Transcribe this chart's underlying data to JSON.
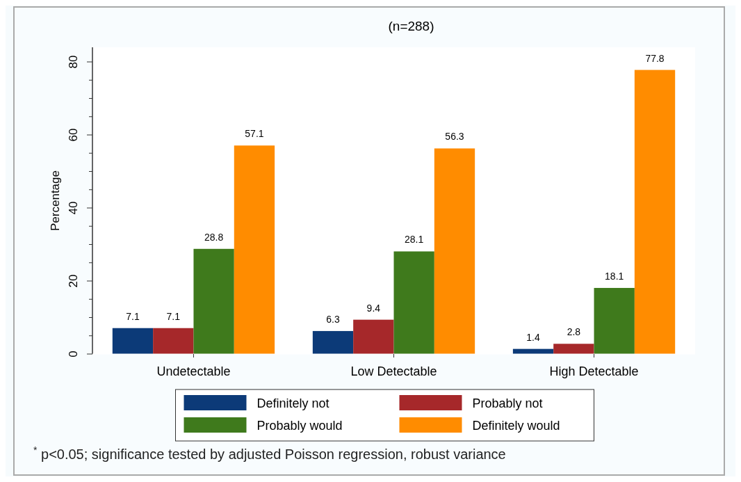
{
  "chart_data": {
    "type": "bar",
    "title": "(n=288)",
    "ylabel": "Percentage",
    "categories": [
      "Undetectable",
      "Low Detectable",
      "High Detectable"
    ],
    "series": [
      {
        "name": "Definitely not",
        "color": "#0c3a78",
        "values": [
          7.1,
          6.3,
          1.4
        ]
      },
      {
        "name": "Probably not",
        "color": "#a6282a",
        "values": [
          7.1,
          9.4,
          2.8
        ]
      },
      {
        "name": "Probably would",
        "color": "#3f7a1c",
        "values": [
          28.8,
          28.1,
          18.1
        ]
      },
      {
        "name": "Definitely would",
        "color": "#ff8c00",
        "values": [
          57.1,
          56.3,
          77.8
        ]
      }
    ],
    "ylim": [
      0,
      84
    ],
    "yticks": [
      0,
      {
        "value": 5,
        "label": null
      },
      {
        "value": 10,
        "label": null
      },
      {
        "value": 15,
        "label": null
      },
      20,
      {
        "value": 25,
        "label": null
      },
      {
        "value": 30,
        "label": null
      },
      {
        "value": 35,
        "label": null
      },
      40,
      {
        "value": 45,
        "label": null
      },
      {
        "value": 50,
        "label": null
      },
      {
        "value": 55,
        "label": null
      },
      60,
      {
        "value": 65,
        "label": null
      },
      {
        "value": 70,
        "label": null
      },
      {
        "value": 75,
        "label": null
      },
      80
    ],
    "data_labels": true,
    "grid": false,
    "legend": "bottom",
    "annotations": [
      "$^{*}$p<0.05; significance tested by adjusted Poisson regression, robust variance"
    ]
  }
}
